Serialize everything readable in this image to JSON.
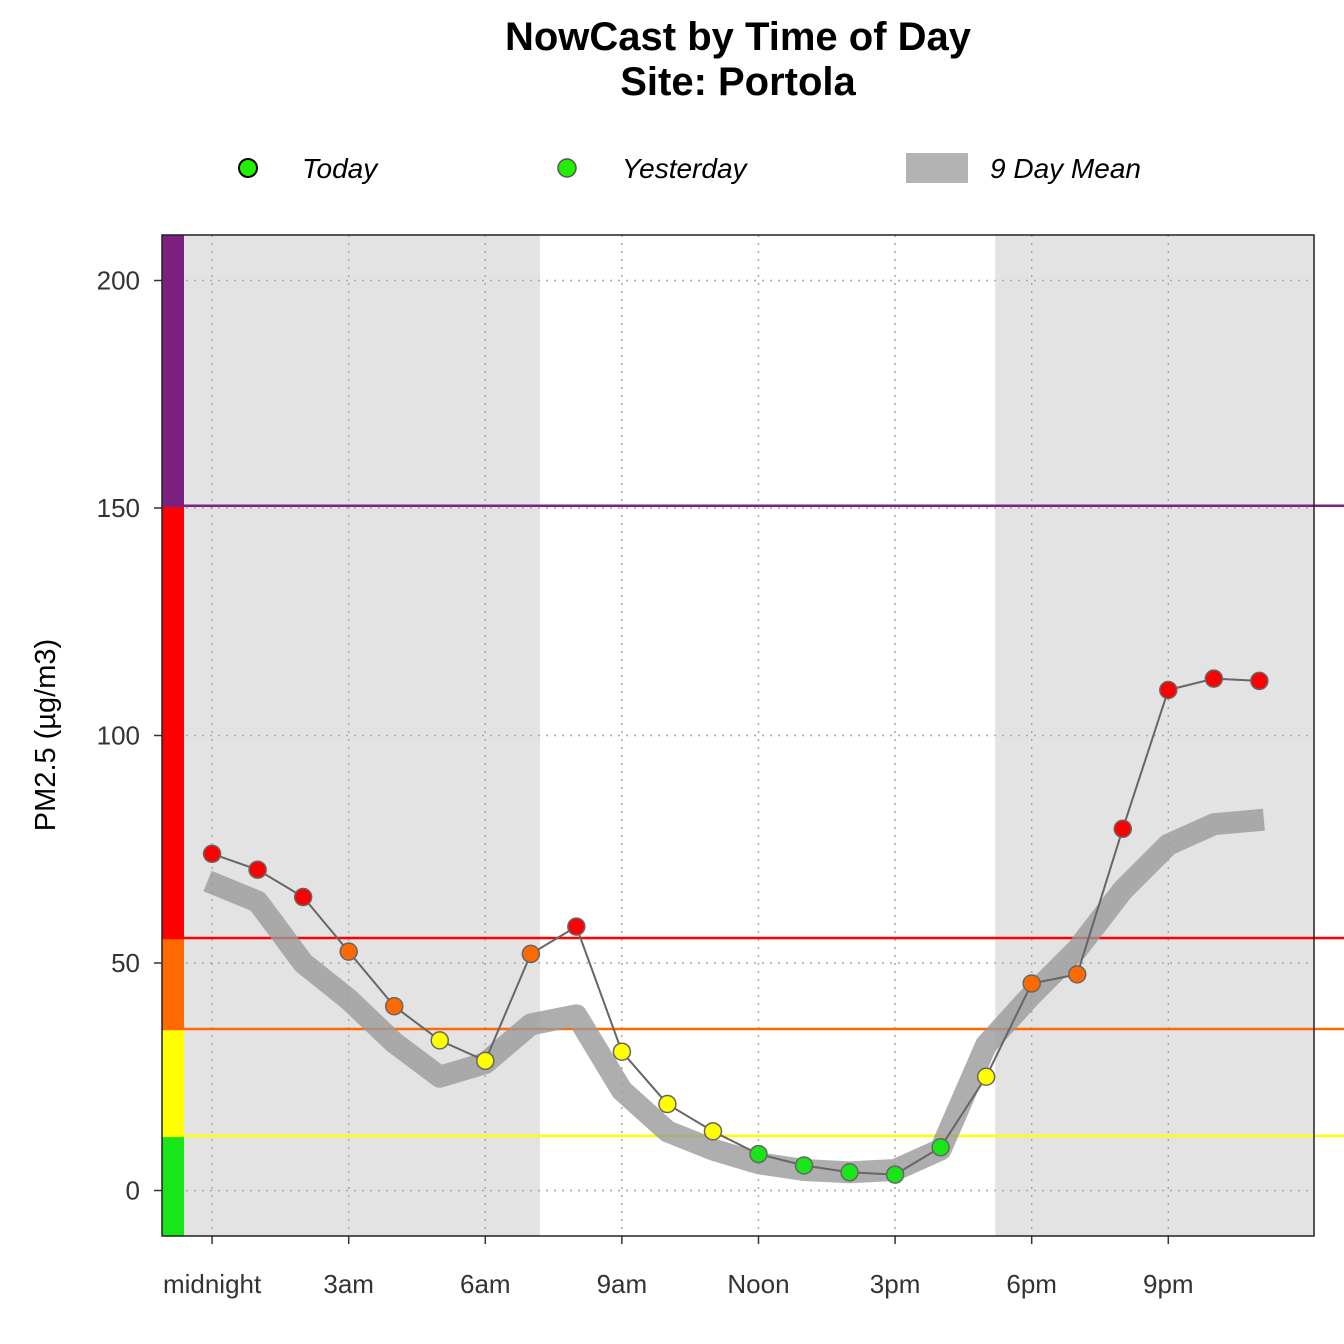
{
  "chart_data": {
    "type": "line",
    "title": "NowCast by Time of Day",
    "subtitle": "Site: Portola",
    "ylabel": "PM2.5 (µg/m3)",
    "xlabel": "",
    "ylim": [
      -10,
      210
    ],
    "xlim": [
      -1.1,
      24.2
    ],
    "y_ticks": [
      0,
      50,
      100,
      150,
      200
    ],
    "x_ticks": [
      {
        "hour": 0,
        "label": "midnight"
      },
      {
        "hour": 3,
        "label": "3am"
      },
      {
        "hour": 6,
        "label": "6am"
      },
      {
        "hour": 9,
        "label": "9am"
      },
      {
        "hour": 12,
        "label": "Noon"
      },
      {
        "hour": 15,
        "label": "3pm"
      },
      {
        "hour": 18,
        "label": "6pm"
      },
      {
        "hour": 21,
        "label": "9pm"
      }
    ],
    "grid": true,
    "night_shading": [
      {
        "from": -1.1,
        "to": 7.2
      },
      {
        "from": 17.2,
        "to": 24.2
      }
    ],
    "legend": {
      "position": "top",
      "items": [
        {
          "label": "Today",
          "symbol": "point-dark-outline",
          "color": "#22ee00"
        },
        {
          "label": "Yesterday",
          "symbol": "point",
          "color": "#22ee00"
        },
        {
          "label": "9 Day Mean",
          "symbol": "band",
          "color": "#b3b3b3"
        }
      ]
    },
    "aqi_bands": [
      {
        "from": -10,
        "to": 12,
        "color": "#19e619"
      },
      {
        "from": 12,
        "to": 35.5,
        "color": "#ffff00"
      },
      {
        "from": 35.5,
        "to": 55.5,
        "color": "#ff6a00"
      },
      {
        "from": 55.5,
        "to": 150.5,
        "color": "#ff0000"
      },
      {
        "from": 150.5,
        "to": 210,
        "color": "#7d2181"
      }
    ],
    "threshold_lines": [
      {
        "value": 12,
        "color": "#ffff00"
      },
      {
        "value": 35.5,
        "color": "#ff6a00"
      },
      {
        "value": 55.5,
        "color": "#ff0000"
      },
      {
        "value": 150.5,
        "color": "#7d2181"
      }
    ],
    "series": [
      {
        "name": "Yesterday",
        "hours": [
          0,
          1,
          2,
          3,
          4,
          5,
          6,
          7,
          8,
          9,
          10,
          11,
          12,
          13,
          14,
          15,
          16,
          17,
          18,
          19,
          20,
          21,
          22,
          23
        ],
        "values": [
          74,
          70.5,
          64.5,
          52.5,
          40.5,
          33,
          28.5,
          52,
          58,
          30.5,
          19,
          13,
          8,
          5.5,
          4,
          3.5,
          9.5,
          25,
          45.5,
          47.5,
          79.5,
          110,
          112.5,
          112
        ]
      },
      {
        "name": "9 Day Mean",
        "hours": [
          -0.1,
          1,
          2,
          3,
          4,
          5,
          6,
          7,
          8,
          9,
          10,
          11,
          12,
          13,
          14,
          15,
          16,
          17,
          18,
          19,
          20,
          21,
          22,
          23.1
        ],
        "values": [
          68,
          63.5,
          50,
          42,
          32.5,
          25,
          28,
          36.5,
          38.5,
          22,
          13,
          9,
          6,
          4.5,
          4,
          4.5,
          9,
          32,
          43,
          53,
          66,
          76,
          80.5,
          81.5
        ]
      }
    ],
    "point_colors": [
      "#ff0000",
      "#ff0000",
      "#ff0000",
      "#ff6a00",
      "#ff6a00",
      "#ffff00",
      "#ffff00",
      "#ff6a00",
      "#ff0000",
      "#ffff00",
      "#ffff00",
      "#ffff00",
      "#19e619",
      "#19e619",
      "#19e619",
      "#19e619",
      "#19e619",
      "#ffff00",
      "#ff6a00",
      "#ff6a00",
      "#ff0000",
      "#ff0000",
      "#ff0000",
      "#ff0000"
    ]
  }
}
